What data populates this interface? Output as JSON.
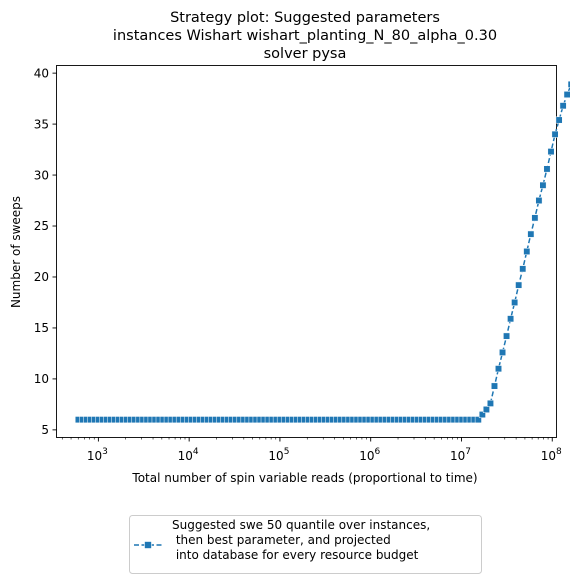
{
  "chart_data": {
    "type": "line",
    "title_lines": [
      "Strategy plot: Suggested parameters",
      "instances Wishart wishart_planting_N_80_alpha_0.30",
      "solver pysa"
    ],
    "xlabel": "Total number of spin variable reads (proportional to time)",
    "ylabel": "Number of sweeps",
    "x_scale": "log",
    "xlim": [
      350,
      110000000
    ],
    "ylim": [
      4.3,
      40.7
    ],
    "x_ticks": [
      {
        "value": 1000,
        "label_base": "10",
        "label_exp": "3"
      },
      {
        "value": 10000,
        "label_base": "10",
        "label_exp": "4"
      },
      {
        "value": 100000,
        "label_base": "10",
        "label_exp": "5"
      },
      {
        "value": 1000000,
        "label_base": "10",
        "label_exp": "6"
      },
      {
        "value": 10000000,
        "label_base": "10",
        "label_exp": "7"
      },
      {
        "value": 100000000,
        "label_base": "10",
        "label_exp": "8"
      }
    ],
    "y_ticks": [
      5,
      10,
      15,
      20,
      25,
      30,
      35,
      40
    ],
    "grid": false,
    "legend_position": "below-plot",
    "color": "#1f77b4",
    "series": [
      {
        "name": "Suggested swe 50 quantile over instances,\n then best parameter, and projected\n into database for every resource budget",
        "marker": "square",
        "line_style": "dashed",
        "x_log_start": 2.78,
        "x_log_step": 0.0445,
        "y": [
          6,
          6,
          6,
          6,
          6,
          6,
          6,
          6,
          6,
          6,
          6,
          6,
          6,
          6,
          6,
          6,
          6,
          6,
          6,
          6,
          6,
          6,
          6,
          6,
          6,
          6,
          6,
          6,
          6,
          6,
          6,
          6,
          6,
          6,
          6,
          6,
          6,
          6,
          6,
          6,
          6,
          6,
          6,
          6,
          6,
          6,
          6,
          6,
          6,
          6,
          6,
          6,
          6,
          6,
          6,
          6,
          6,
          6,
          6,
          6,
          6,
          6,
          6,
          6,
          6,
          6,
          6,
          6,
          6,
          6,
          6,
          6,
          6,
          6,
          6,
          6,
          6,
          6,
          6,
          6,
          6,
          6,
          6,
          6,
          6,
          6,
          6,
          6,
          6,
          6,
          6,
          6,
          6,
          6,
          6,
          6,
          6,
          6,
          6,
          6,
          6.5,
          7.0,
          7.6,
          9.3,
          11.0,
          12.6,
          14.2,
          15.9,
          17.5,
          19.2,
          20.8,
          22.5,
          24.2,
          25.8,
          27.5,
          29.0,
          30.6,
          32.3,
          34.0,
          35.4,
          36.8,
          37.9,
          38.9,
          38.9,
          38.9,
          38.9,
          38.9,
          38.9,
          38.9,
          38.9,
          38.9,
          38.9,
          38.9,
          38.9
        ]
      }
    ]
  }
}
